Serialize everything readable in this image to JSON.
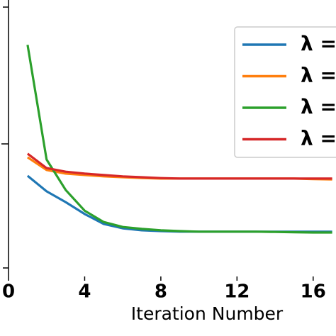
{
  "chart_data": {
    "type": "line",
    "x_label": "Iteration Number",
    "x": [
      1,
      2,
      3,
      4,
      5,
      6,
      7,
      8,
      9,
      10,
      11,
      12,
      13,
      14,
      15,
      16,
      17
    ],
    "xlim": [
      0,
      17.2
    ],
    "xticks": [
      0,
      4,
      8,
      12,
      16
    ],
    "ylim": [
      0,
      10
    ],
    "series": [
      {
        "name": "λ =",
        "color": "#1f77b4",
        "values": [
          3.64,
          3.08,
          2.69,
          2.26,
          1.9,
          1.74,
          1.67,
          1.64,
          1.62,
          1.62,
          1.62,
          1.62,
          1.62,
          1.62,
          1.62,
          1.62,
          1.62
        ]
      },
      {
        "name": "λ =",
        "color": "#ff7f0e",
        "values": [
          4.31,
          3.85,
          3.72,
          3.67,
          3.62,
          3.59,
          3.56,
          3.54,
          3.54,
          3.54,
          3.54,
          3.54,
          3.54,
          3.54,
          3.54,
          3.52,
          3.51
        ]
      },
      {
        "name": "λ =",
        "color": "#2ca02c",
        "values": [
          8.38,
          4.23,
          3.13,
          2.38,
          1.97,
          1.79,
          1.72,
          1.67,
          1.64,
          1.62,
          1.62,
          1.62,
          1.62,
          1.61,
          1.6,
          1.59,
          1.59
        ]
      },
      {
        "name": "λ =",
        "color": "#d62728",
        "values": [
          4.44,
          3.92,
          3.79,
          3.72,
          3.67,
          3.62,
          3.59,
          3.56,
          3.54,
          3.54,
          3.54,
          3.54,
          3.54,
          3.54,
          3.54,
          3.54,
          3.54
        ]
      }
    ]
  }
}
